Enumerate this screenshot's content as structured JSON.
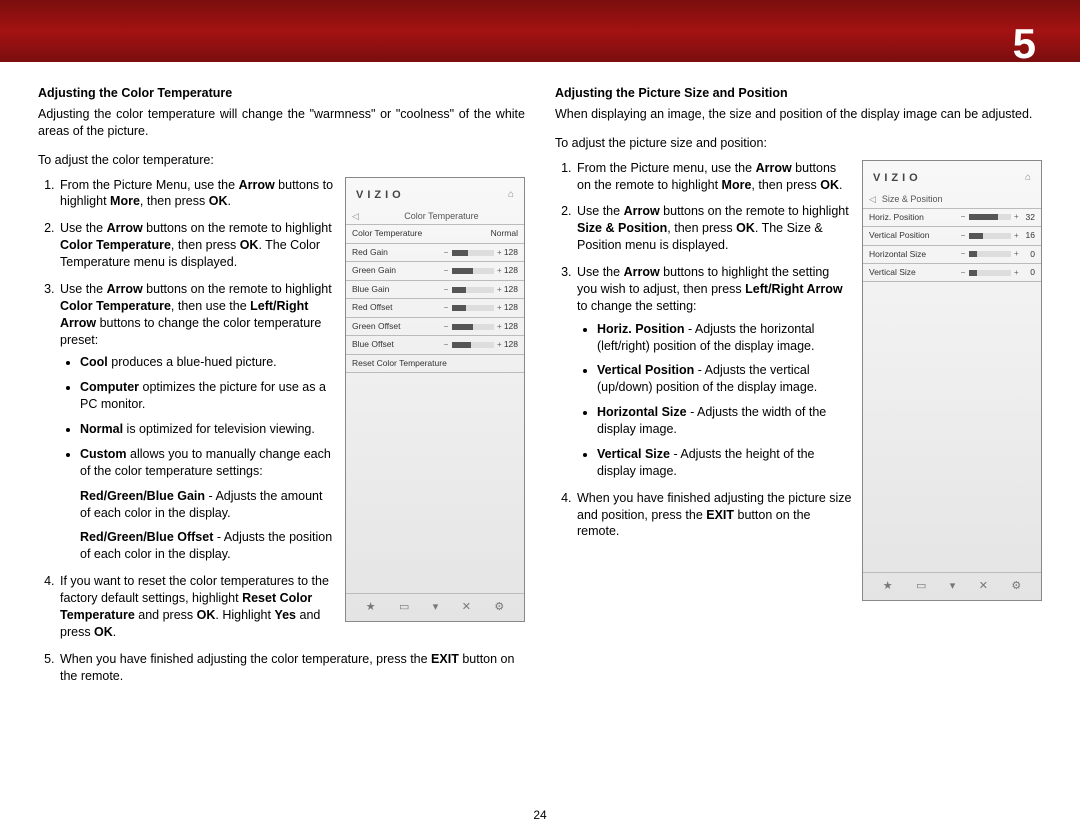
{
  "page_number_top": "5",
  "page_number_bottom": "24",
  "left": {
    "title": "Adjusting the Color Temperature",
    "intro": "Adjusting the color temperature will change the \"warmness\" or \"coolness\" of the white areas of the picture.",
    "lead": "To adjust the color temperature:",
    "step1_a": "From the Picture Menu, use the ",
    "step1_b": " buttons to highlight ",
    "step1_c": ", then press ",
    "step1_d": ".",
    "step2_a": "Use the ",
    "step2_b": " buttons on the remote to highlight ",
    "step2_c": ", then press ",
    "step2_d": ". The Color Temperature menu is displayed.",
    "step3_a": "Use the ",
    "step3_b": " buttons on the remote to highlight ",
    "step3_c": ", then use the ",
    "step3_d": " buttons to change the color temperature preset:",
    "cool_b": "Cool",
    "cool_t": " produces a blue-hued picture.",
    "computer_b": "Computer",
    "computer_t": " optimizes the picture for use as a PC monitor.",
    "normal_b": "Normal",
    "normal_t": " is optimized for television viewing.",
    "custom_b": "Custom",
    "custom_t": " allows you to manually change each of the color temperature settings:",
    "gain_b": "Red/Green/Blue Gain",
    "gain_t": " - Adjusts the amount of each color in the display.",
    "offset_b": "Red/Green/Blue Offset",
    "offset_t": " - Adjusts the position of each color in the display.",
    "step4_a": "If you want to reset the color temperatures to the factory default settings, highlight ",
    "step4_b": " and press ",
    "step4_c": ". Highlight ",
    "step4_d": " and press ",
    "step4_e": ".",
    "step5_a": "When you have finished adjusting the color temperature, press the ",
    "step5_b": " button on the remote.",
    "bold": {
      "arrow": "Arrow",
      "more": "More",
      "ok": "OK",
      "color_temp": "Color Temperature",
      "lr_arrow": "Left/Right Arrow",
      "reset": "Reset Color Temperature",
      "yes": "Yes",
      "exit": "EXIT"
    }
  },
  "right": {
    "title": "Adjusting the Picture Size and Position",
    "intro": "When displaying an image, the size and position of the display image can be adjusted.",
    "lead": "To adjust the picture size and position:",
    "step1_a": "From the Picture menu, use the ",
    "step1_b": " buttons on the remote to highlight ",
    "step1_c": ", then press ",
    "step1_d": ".",
    "step2_a": "Use the ",
    "step2_b": " buttons on the remote to highlight ",
    "step2_c": ", then press ",
    "step2_d": ". The Size & Position menu is displayed.",
    "step3_a": "Use the ",
    "step3_b": " buttons to highlight the setting you wish to adjust, then press ",
    "step3_c": " to change the setting:",
    "hp_b": "Horiz. Position",
    "hp_t": " - Adjusts the horizontal (left/right) position of the display image.",
    "vp_b": "Vertical Position",
    "vp_t": " - Adjusts the vertical (up/down) position of the display image.",
    "hs_b": "Horizontal Size",
    "hs_t": " - Adjusts the width of the display image.",
    "vs_b": "Vertical Size",
    "vs_t": " - Adjusts the height of the display image.",
    "step4_a": "When you have finished adjusting the picture size and position, press the ",
    "step4_b": " button on the remote.",
    "bold": {
      "arrow": "Arrow",
      "more": "More",
      "ok": "OK",
      "size_pos": "Size & Position",
      "lr_arrow": "Left/Right Arrow",
      "exit": "EXIT"
    }
  },
  "osd1": {
    "logo": "VIZIO",
    "title": "Color Temperature",
    "rows": [
      {
        "label": "Color Temperature",
        "type": "text",
        "value": "Normal"
      },
      {
        "label": "Red Gain",
        "type": "slider",
        "fill": 40,
        "value": "128"
      },
      {
        "label": "Green Gain",
        "type": "slider",
        "fill": 50,
        "value": "128"
      },
      {
        "label": "Blue Gain",
        "type": "slider",
        "fill": 35,
        "value": "128"
      },
      {
        "label": "Red Offset",
        "type": "slider",
        "fill": 35,
        "value": "128"
      },
      {
        "label": "Green Offset",
        "type": "slider",
        "fill": 50,
        "value": "128"
      },
      {
        "label": "Blue Offset",
        "type": "slider",
        "fill": 45,
        "value": "128"
      },
      {
        "label": "Reset Color Temperature",
        "type": "reset"
      }
    ],
    "footer": [
      "★",
      "▭",
      "▾",
      "✕",
      "⚙"
    ]
  },
  "osd2": {
    "logo": "VIZIO",
    "title": "Size & Position",
    "rows": [
      {
        "label": "Horiz. Position",
        "type": "slider",
        "fill": 70,
        "value": "32"
      },
      {
        "label": "Vertical Position",
        "type": "slider",
        "fill": 35,
        "value": "16"
      },
      {
        "label": "Horizontal Size",
        "type": "slider",
        "fill": 20,
        "value": "0"
      },
      {
        "label": "Vertical Size",
        "type": "slider",
        "fill": 20,
        "value": "0"
      }
    ],
    "footer": [
      "★",
      "▭",
      "▾",
      "✕",
      "⚙"
    ]
  }
}
